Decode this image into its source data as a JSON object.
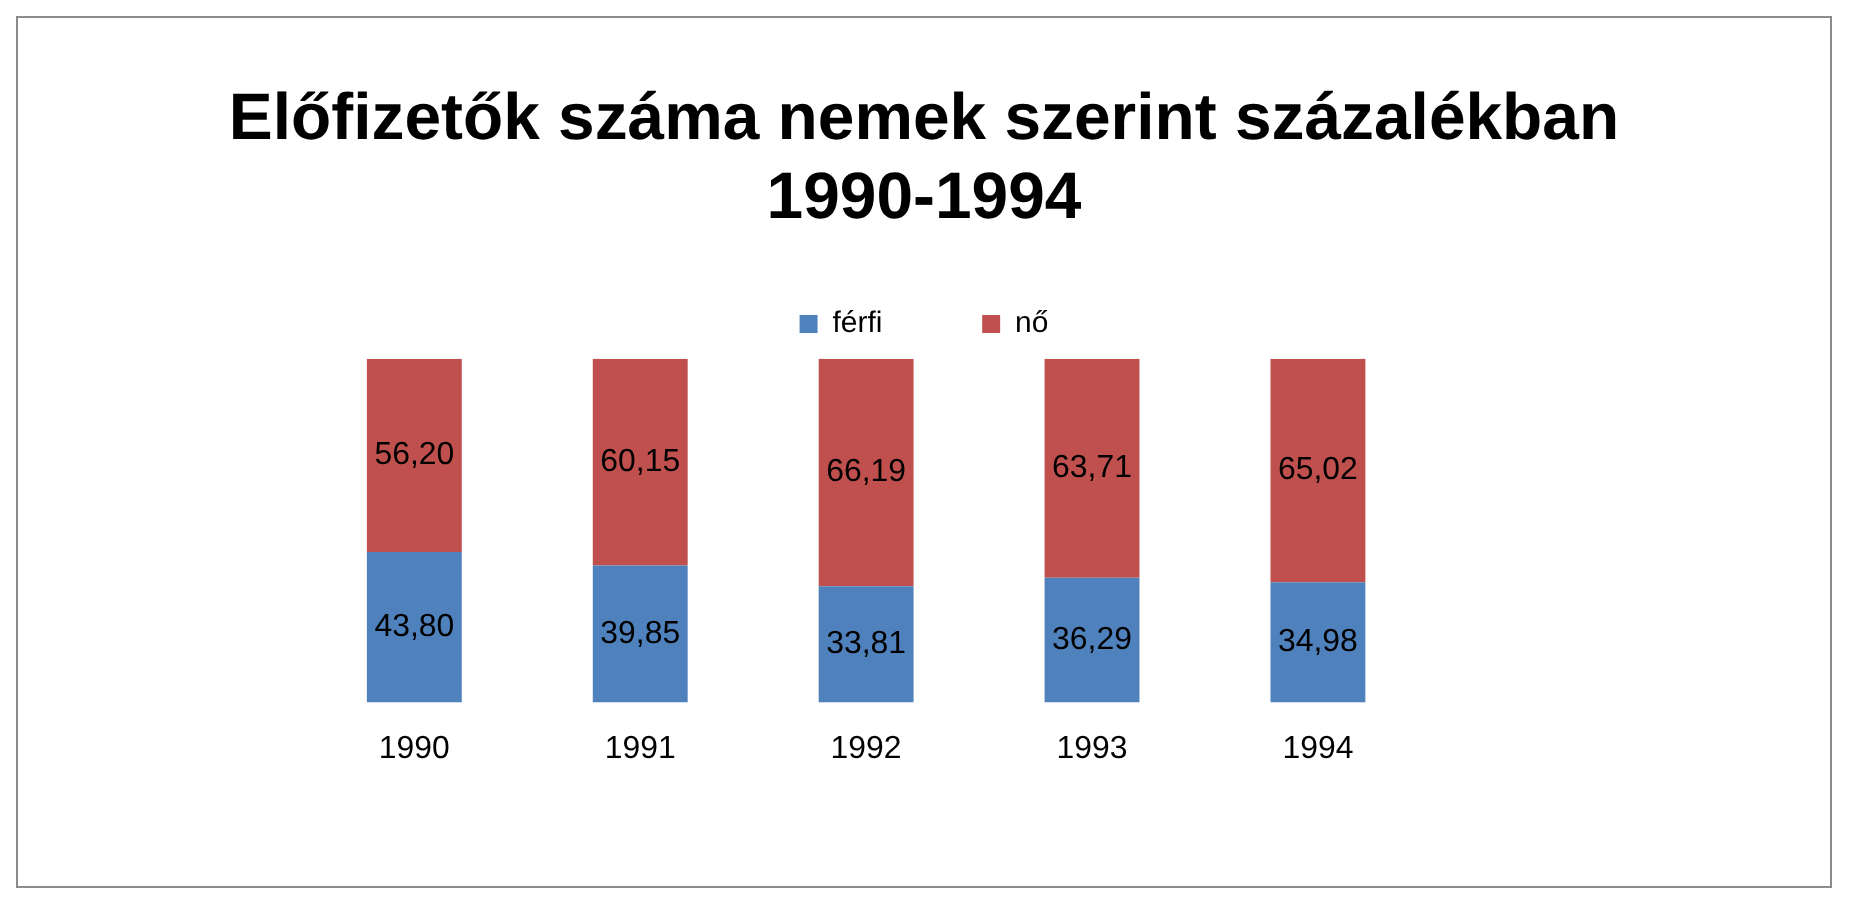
{
  "chart_data": {
    "type": "bar",
    "title": "Előfizetők száma nemek szerint százalékban 1990-1994",
    "categories": [
      "1990",
      "1991",
      "1992",
      "1993",
      "1994"
    ],
    "series": [
      {
        "name": "férfi",
        "color": "#4f81bd",
        "values": [
          43.8,
          39.85,
          33.81,
          36.29,
          34.98
        ],
        "value_labels": [
          "43,80",
          "39,85",
          "33,81",
          "36,29",
          "34,98"
        ]
      },
      {
        "name": "nő",
        "color": "#c0504d",
        "values": [
          56.2,
          60.15,
          66.19,
          63.71,
          65.02
        ],
        "value_labels": [
          "56,20",
          "60,15",
          "66,19",
          "63,71",
          "65,02"
        ]
      }
    ],
    "stacked": true,
    "legend": "top",
    "grid": false
  }
}
